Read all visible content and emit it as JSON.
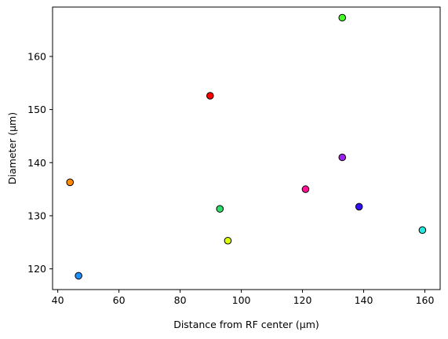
{
  "chart_data": {
    "type": "scatter",
    "xlabel": "Distance from RF center (µm)",
    "ylabel": "Diameter (µm)",
    "xlim": [
      38.3,
      165.0
    ],
    "ylim": [
      116.1,
      169.3
    ],
    "xticks": [
      40,
      60,
      80,
      100,
      120,
      140,
      160
    ],
    "yticks": [
      120,
      130,
      140,
      150,
      160
    ],
    "grid": false,
    "marker_edge_color": "#000000",
    "points": [
      {
        "x": 44.0,
        "y": 136.3,
        "color": "#ff8c00"
      },
      {
        "x": 46.8,
        "y": 118.7,
        "color": "#1e90ff"
      },
      {
        "x": 89.8,
        "y": 152.6,
        "color": "#ff0000"
      },
      {
        "x": 93.0,
        "y": 131.3,
        "color": "#2ee06a"
      },
      {
        "x": 95.6,
        "y": 125.3,
        "color": "#ddff00"
      },
      {
        "x": 121.0,
        "y": 135.0,
        "color": "#ff1493"
      },
      {
        "x": 133.0,
        "y": 167.3,
        "color": "#44ff22"
      },
      {
        "x": 133.0,
        "y": 141.0,
        "color": "#a020f0"
      },
      {
        "x": 138.5,
        "y": 131.7,
        "color": "#3311ee"
      },
      {
        "x": 159.2,
        "y": 127.3,
        "color": "#22e8e0"
      }
    ]
  }
}
